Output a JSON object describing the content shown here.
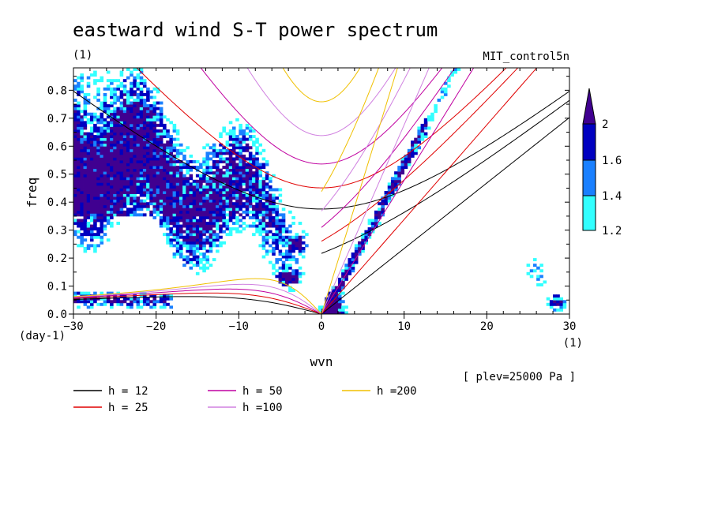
{
  "chart_data": {
    "type": "contour",
    "title": "eastward wind S-T power spectrum",
    "unit_label": "(1)",
    "experiment": "MIT_control5n",
    "plev_note": "[ plev=25000 Pa ]",
    "xlabel": "wvn",
    "ylabel": "freq",
    "x_unit": "(1)",
    "y_unit": "(day-1)",
    "xlim": [
      -30,
      30
    ],
    "ylim": [
      0,
      0.88
    ],
    "x_ticks": [
      -30,
      -20,
      -10,
      0,
      10,
      20,
      30
    ],
    "y_ticks": [
      0.0,
      0.1,
      0.2,
      0.3,
      0.4,
      0.5,
      0.6,
      0.7,
      0.8
    ],
    "contour_levels": [
      1.2,
      1.4,
      1.6,
      2
    ],
    "colorbar": {
      "colors": [
        "#33ffff",
        "#1a80ff",
        "#0000c0",
        "#400090"
      ],
      "tick_labels": [
        "1.2",
        "1.4",
        "1.6",
        "2"
      ]
    },
    "dispersion_curves": [
      {
        "h": "12",
        "label": "h = 12",
        "color": "#000000"
      },
      {
        "h": "25",
        "label": "h = 25",
        "color": "#e00000"
      },
      {
        "h": "50",
        "label": "h = 50",
        "color": "#c000a0"
      },
      {
        "h": "100",
        "label": "h =100",
        "color": "#d080e0"
      },
      {
        "h": "200",
        "label": "h =200",
        "color": "#f0c000"
      }
    ]
  }
}
